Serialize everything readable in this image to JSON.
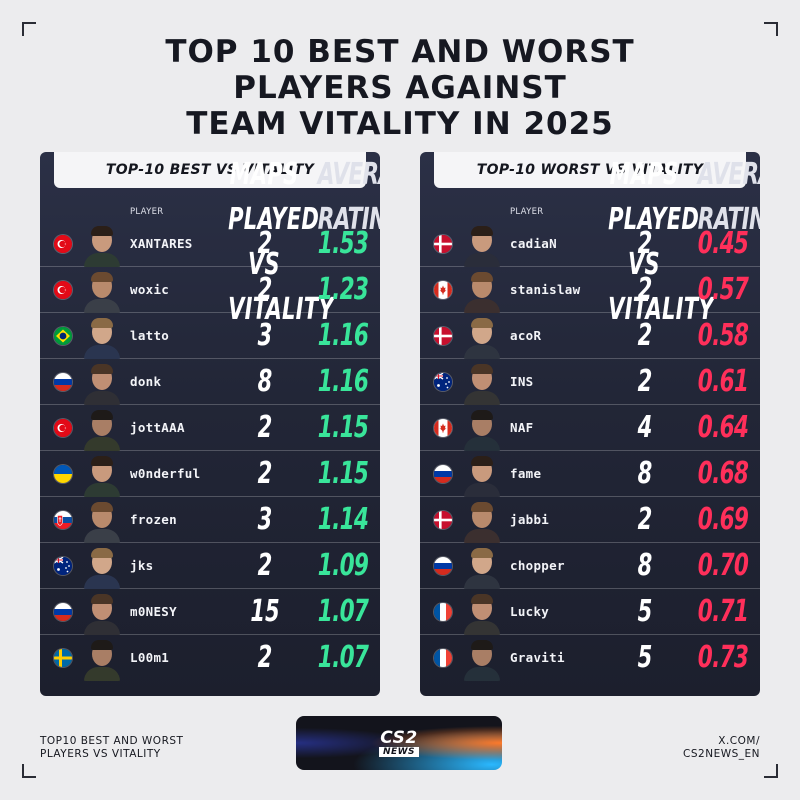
{
  "title": [
    "TOP 10 BEST AND WORST",
    "PLAYERS AGAINST",
    "TEAM VITALITY IN 2025"
  ],
  "headers": {
    "player": "PLAYER",
    "maps": [
      "MAPS PLAYED",
      "VS VITALITY"
    ],
    "rating": [
      "AVERAGE",
      "RATING"
    ]
  },
  "best": {
    "title": "TOP-10 BEST VS VITALITY",
    "rating_color": "#39e59a",
    "players": [
      {
        "flag": "turkey",
        "name": "XANTARES",
        "maps": "2",
        "rating": "1.53"
      },
      {
        "flag": "turkey",
        "name": "woxic",
        "maps": "2",
        "rating": "1.23"
      },
      {
        "flag": "brazil",
        "name": "latto",
        "maps": "3",
        "rating": "1.16"
      },
      {
        "flag": "russia",
        "name": "donk",
        "maps": "8",
        "rating": "1.16"
      },
      {
        "flag": "turkey",
        "name": "jottAAA",
        "maps": "2",
        "rating": "1.15"
      },
      {
        "flag": "ukraine",
        "name": "w0nderful",
        "maps": "2",
        "rating": "1.15"
      },
      {
        "flag": "slovakia",
        "name": "frozen",
        "maps": "3",
        "rating": "1.14"
      },
      {
        "flag": "australia",
        "name": "jks",
        "maps": "2",
        "rating": "1.09"
      },
      {
        "flag": "russia",
        "name": "m0NESY",
        "maps": "15",
        "rating": "1.07"
      },
      {
        "flag": "sweden",
        "name": "L00m1",
        "maps": "2",
        "rating": "1.07"
      }
    ]
  },
  "worst": {
    "title": "TOP-10 WORST VS VITALITY",
    "rating_color": "#ff2f5a",
    "players": [
      {
        "flag": "denmark",
        "name": "cadiaN",
        "maps": "2",
        "rating": "0.45"
      },
      {
        "flag": "canada",
        "name": "stanislaw",
        "maps": "2",
        "rating": "0.57"
      },
      {
        "flag": "denmark",
        "name": "acoR",
        "maps": "2",
        "rating": "0.58"
      },
      {
        "flag": "australia",
        "name": "INS",
        "maps": "2",
        "rating": "0.61"
      },
      {
        "flag": "canada",
        "name": "NAF",
        "maps": "4",
        "rating": "0.64"
      },
      {
        "flag": "russia",
        "name": "fame",
        "maps": "8",
        "rating": "0.68"
      },
      {
        "flag": "denmark",
        "name": "jabbi",
        "maps": "2",
        "rating": "0.69"
      },
      {
        "flag": "russia",
        "name": "chopper",
        "maps": "8",
        "rating": "0.70"
      },
      {
        "flag": "france",
        "name": "Lucky",
        "maps": "5",
        "rating": "0.71"
      },
      {
        "flag": "france",
        "name": "Graviti",
        "maps": "5",
        "rating": "0.73"
      }
    ]
  },
  "footer": {
    "left": [
      "TOP10 BEST AND WORST",
      "PLAYERS VS VITALITY"
    ],
    "logo_main": "CS2",
    "logo_sub": "NEWS",
    "right": [
      "X.COM/",
      "CS2NEWS_EN"
    ]
  }
}
